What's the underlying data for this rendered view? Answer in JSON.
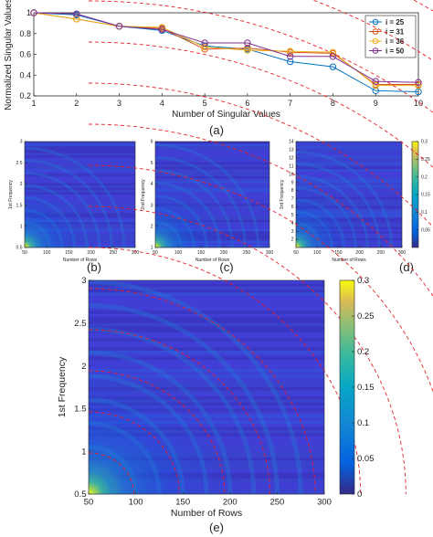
{
  "panel_labels": [
    "(a)",
    "(b)",
    "(c)",
    "(d)",
    "(e)"
  ],
  "chart_data": [
    {
      "id": "a",
      "type": "line",
      "xlabel": "Number of Singular Values",
      "ylabel": "Normalized Singular Values",
      "xlim": [
        1,
        10
      ],
      "ylim": [
        0.2,
        1.0
      ],
      "x_ticks": [
        1,
        2,
        3,
        4,
        5,
        6,
        7,
        8,
        9,
        10
      ],
      "y_ticks": [
        0.2,
        0.4,
        0.6,
        0.8,
        1
      ],
      "grid": false,
      "legend": "top-right",
      "x": [
        1,
        2,
        3,
        4,
        5,
        6,
        7,
        8,
        9,
        10
      ],
      "series": [
        {
          "name": "i = 25",
          "color": "#0072BD",
          "values": [
            1.0,
            0.98,
            0.87,
            0.83,
            0.68,
            0.65,
            0.53,
            0.48,
            0.25,
            0.24
          ]
        },
        {
          "name": "i = 31",
          "color": "#D95319",
          "values": [
            1.0,
            0.94,
            0.87,
            0.85,
            0.65,
            0.66,
            0.62,
            0.61,
            0.31,
            0.31
          ]
        },
        {
          "name": "i = 36",
          "color": "#EDB120",
          "values": [
            1.0,
            0.94,
            0.87,
            0.86,
            0.67,
            0.64,
            0.63,
            0.62,
            0.3,
            0.3
          ]
        },
        {
          "name": "i = 50",
          "color": "#7E2F8E",
          "values": [
            1.0,
            0.99,
            0.87,
            0.84,
            0.71,
            0.71,
            0.58,
            0.58,
            0.34,
            0.33
          ]
        }
      ]
    },
    {
      "id": "b",
      "type": "heatmap",
      "xlabel": "Number of Rows",
      "ylabel": "1st Frequency",
      "xlim": [
        50,
        300
      ],
      "ylim": [
        0.5,
        3
      ],
      "x_ticks": [
        50,
        100,
        150,
        200,
        250,
        300
      ],
      "y_ticks": [
        0.5,
        1,
        1.5,
        2,
        2.5,
        3
      ]
    },
    {
      "id": "c",
      "type": "heatmap",
      "xlabel": "Number of Rows",
      "ylabel": "2nd Frequency",
      "xlim": [
        50,
        300
      ],
      "ylim": [
        1,
        6
      ],
      "x_ticks": [
        50,
        100,
        150,
        200,
        250,
        300
      ],
      "y_ticks": [
        1,
        2,
        3,
        4,
        5,
        6
      ]
    },
    {
      "id": "d",
      "type": "heatmap",
      "xlabel": "Number of Rows",
      "ylabel": "3rd Frequency",
      "xlim": [
        50,
        300
      ],
      "ylim": [
        1,
        14
      ],
      "x_ticks": [
        50,
        100,
        150,
        200,
        250,
        300
      ],
      "y_ticks": [
        2,
        3,
        4,
        5,
        6,
        7,
        8,
        9,
        10,
        11,
        12,
        13,
        14
      ],
      "colorbar_ticks": [
        0.05,
        0.1,
        0.15,
        0.2,
        0.25,
        0.3
      ],
      "clim": [
        0,
        0.3
      ]
    },
    {
      "id": "e",
      "type": "heatmap",
      "xlabel": "Number of Rows",
      "ylabel": "1st Frequency",
      "xlim": [
        50,
        300
      ],
      "ylim": [
        0.5,
        3
      ],
      "x_ticks": [
        50,
        100,
        150,
        200,
        250,
        300
      ],
      "y_ticks": [
        0.5,
        1,
        1.5,
        2,
        2.5,
        3
      ],
      "colorbar_ticks": [
        0,
        0.05,
        0.1,
        0.15,
        0.2,
        0.25,
        0.3
      ],
      "clim": [
        0,
        0.3
      ],
      "overlay": "red dashed curves"
    }
  ]
}
